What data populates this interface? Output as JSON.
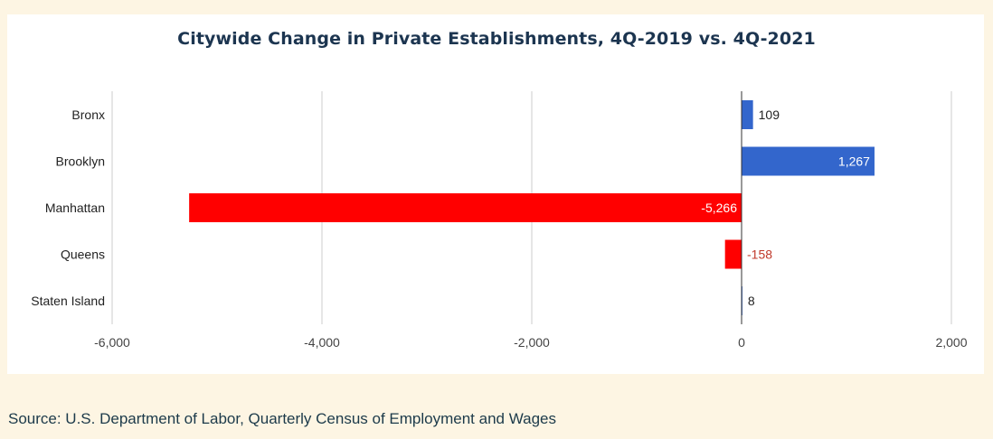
{
  "chart_data": {
    "type": "bar",
    "orientation": "horizontal",
    "title": "Citywide Change in Private Establishments, 4Q-2019 vs. 4Q-2021",
    "categories": [
      "Bronx",
      "Brooklyn",
      "Manhattan",
      "Queens",
      "Staten Island"
    ],
    "values": [
      109,
      1267,
      -5266,
      -158,
      8
    ],
    "data_labels": [
      "109",
      "1,267",
      "-5,266",
      "-158",
      "8"
    ],
    "xlim": [
      -6000,
      2000
    ],
    "x_ticks": [
      -6000,
      -4000,
      -2000,
      0,
      2000
    ],
    "x_tick_labels": [
      "-6,000",
      "-4,000",
      "-2,000",
      "0",
      "2,000"
    ],
    "grid": true,
    "colors": {
      "positive": "#3366cc",
      "negative": "#ff0000",
      "negative_label": "#c0392b",
      "grid": "#cccccc",
      "zero_line": "#333333",
      "axis_text": "#444444"
    }
  },
  "source_text": "Source: U.S. Department of Labor, Quarterly Census of Employment and Wages"
}
